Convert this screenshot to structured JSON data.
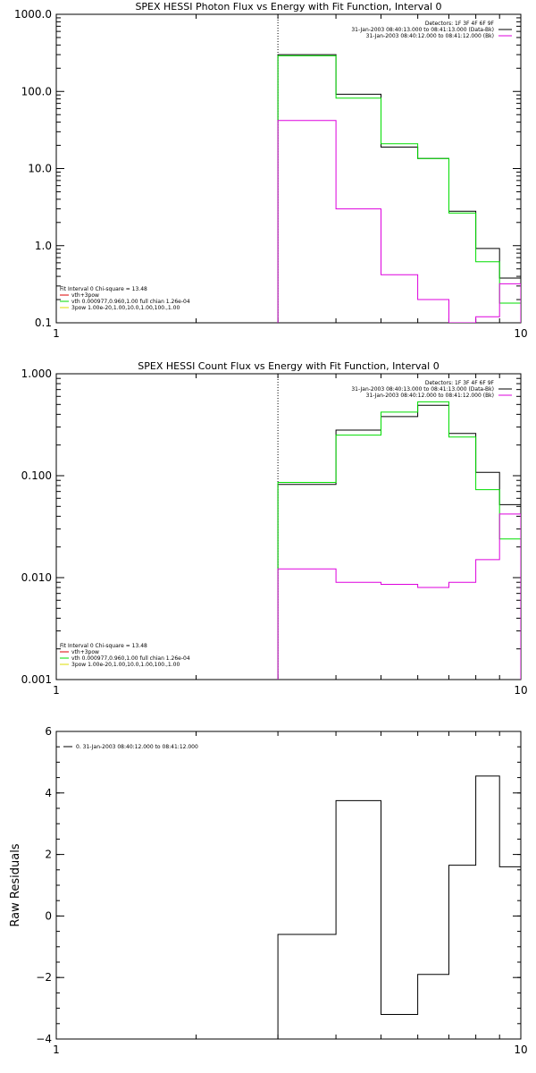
{
  "chart_data": [
    {
      "type": "line",
      "title": "SPEX HESSI Photon Flux vs Energy with Fit Function, Interval 0",
      "ylabel": "",
      "xscale": "log",
      "yscale": "log",
      "xlim": [
        1,
        10
      ],
      "ylim": [
        0.1,
        1000
      ],
      "x_ticks": [
        1,
        10
      ],
      "x_tick_labels": [
        "1",
        "10"
      ],
      "y_ticks": [
        0.1,
        1,
        10,
        100,
        1000
      ],
      "y_tick_labels": [
        "0.1",
        "1.0",
        "10.0",
        "100.0",
        "1000.0"
      ],
      "vline_x": 3,
      "edges": [
        3,
        4,
        5,
        6,
        7,
        8,
        9,
        10
      ],
      "series": [
        {
          "color": "#000000",
          "values": [
            300,
            92,
            19,
            13.5,
            2.8,
            0.92,
            0.38
          ]
        },
        {
          "color": "#00dd00",
          "values": [
            290,
            82,
            21,
            13.5,
            2.65,
            0.62,
            0.18
          ]
        },
        {
          "color": "#dd00dd",
          "values": [
            42,
            3.0,
            0.42,
            0.2,
            0.093,
            0.12,
            0.32
          ]
        }
      ],
      "legend_top": {
        "position": "top-right",
        "lines": [
          {
            "text": "Detectors: 1F 3F 4F 6F 9F",
            "color": ""
          },
          {
            "text": "31-Jan-2003 08:40:13.000 to 08:41:13.000 (Data-Bk)",
            "color": "#000000"
          },
          {
            "text": "31-Jan-2003 08:40:12.000 to 08:41:12.000 (Bk)",
            "color": "#dd00dd"
          }
        ]
      },
      "legend_bottom": {
        "position": "bottom-left",
        "lines": [
          {
            "text": "Fit Interval 0   Chi-square = 13.48",
            "color": ""
          },
          {
            "text": "vth+3pow",
            "color": "#dd0000"
          },
          {
            "text": "vth 0.000977,0.960,1.00  full chian 1.26e-04",
            "color": "#00dd00"
          },
          {
            "text": "3pow 1.00e-20,1.00,10.0,1.00,100.,1.00",
            "color": "#dddd00"
          }
        ]
      }
    },
    {
      "type": "line",
      "title": "SPEX HESSI Count Flux vs Energy with Fit Function, Interval 0",
      "ylabel": "",
      "xscale": "log",
      "yscale": "log",
      "xlim": [
        1,
        10
      ],
      "ylim": [
        0.001,
        1
      ],
      "x_ticks": [
        1,
        10
      ],
      "x_tick_labels": [
        "1",
        "10"
      ],
      "y_ticks": [
        0.001,
        0.01,
        0.1,
        1
      ],
      "y_tick_labels": [
        "0.001",
        "0.010",
        "0.100",
        "1.000"
      ],
      "vline_x": 3,
      "edges": [
        3,
        4,
        5,
        6,
        7,
        8,
        9,
        10
      ],
      "series": [
        {
          "color": "#000000",
          "values": [
            0.082,
            0.28,
            0.38,
            0.49,
            0.26,
            0.108,
            0.052
          ]
        },
        {
          "color": "#00dd00",
          "values": [
            0.086,
            0.25,
            0.42,
            0.53,
            0.24,
            0.073,
            0.024
          ]
        },
        {
          "color": "#dd00dd",
          "values": [
            0.0122,
            0.009,
            0.0086,
            0.008,
            0.009,
            0.015,
            0.042
          ]
        }
      ],
      "legend_top": {
        "position": "top-right",
        "lines": [
          {
            "text": "Detectors: 1F 3F 4F 6F 9F",
            "color": ""
          },
          {
            "text": "31-Jan-2003 08:40:13.000 to 08:41:13.000 (Data-Bk)",
            "color": "#000000"
          },
          {
            "text": "31-Jan-2003 08:40:12.000 to 08:41:12.000 (Bk)",
            "color": "#dd00dd"
          }
        ]
      },
      "legend_bottom": {
        "position": "bottom-left",
        "lines": [
          {
            "text": "Fit Interval 0   Chi-square = 13.48",
            "color": ""
          },
          {
            "text": "vth+3pow",
            "color": "#dd0000"
          },
          {
            "text": "vth 0.000977,0.960,1.00  full chian 1.26e-04",
            "color": "#00dd00"
          },
          {
            "text": "3pow 1.00e-20,1.00,10.0,1.00,100.,1.00",
            "color": "#dddd00"
          }
        ]
      }
    },
    {
      "type": "line",
      "title": "",
      "ylabel": "Raw Residuals",
      "xscale": "log",
      "yscale": "linear",
      "xlim": [
        1,
        10
      ],
      "ylim": [
        -4,
        6
      ],
      "x_ticks": [
        1,
        10
      ],
      "x_tick_labels": [
        "1",
        "10"
      ],
      "y_ticks": [
        -4,
        -2,
        0,
        2,
        4,
        6
      ],
      "y_tick_labels": [
        "−4",
        "−2",
        "0",
        "2",
        "4",
        "6"
      ],
      "vline_x": null,
      "edges": [
        3,
        4,
        5,
        6,
        7,
        8,
        9,
        10
      ],
      "series": [
        {
          "color": "#000000",
          "values": [
            -0.6,
            3.75,
            -3.2,
            -1.9,
            1.65,
            4.55,
            1.6
          ]
        }
      ],
      "legend_top": {
        "position": "top-left",
        "lines": [
          {
            "text": "0. 31-Jan-2003 08:40:12.000 to 08:41:12.000",
            "color": "#000000"
          }
        ]
      },
      "legend_bottom": null
    }
  ]
}
